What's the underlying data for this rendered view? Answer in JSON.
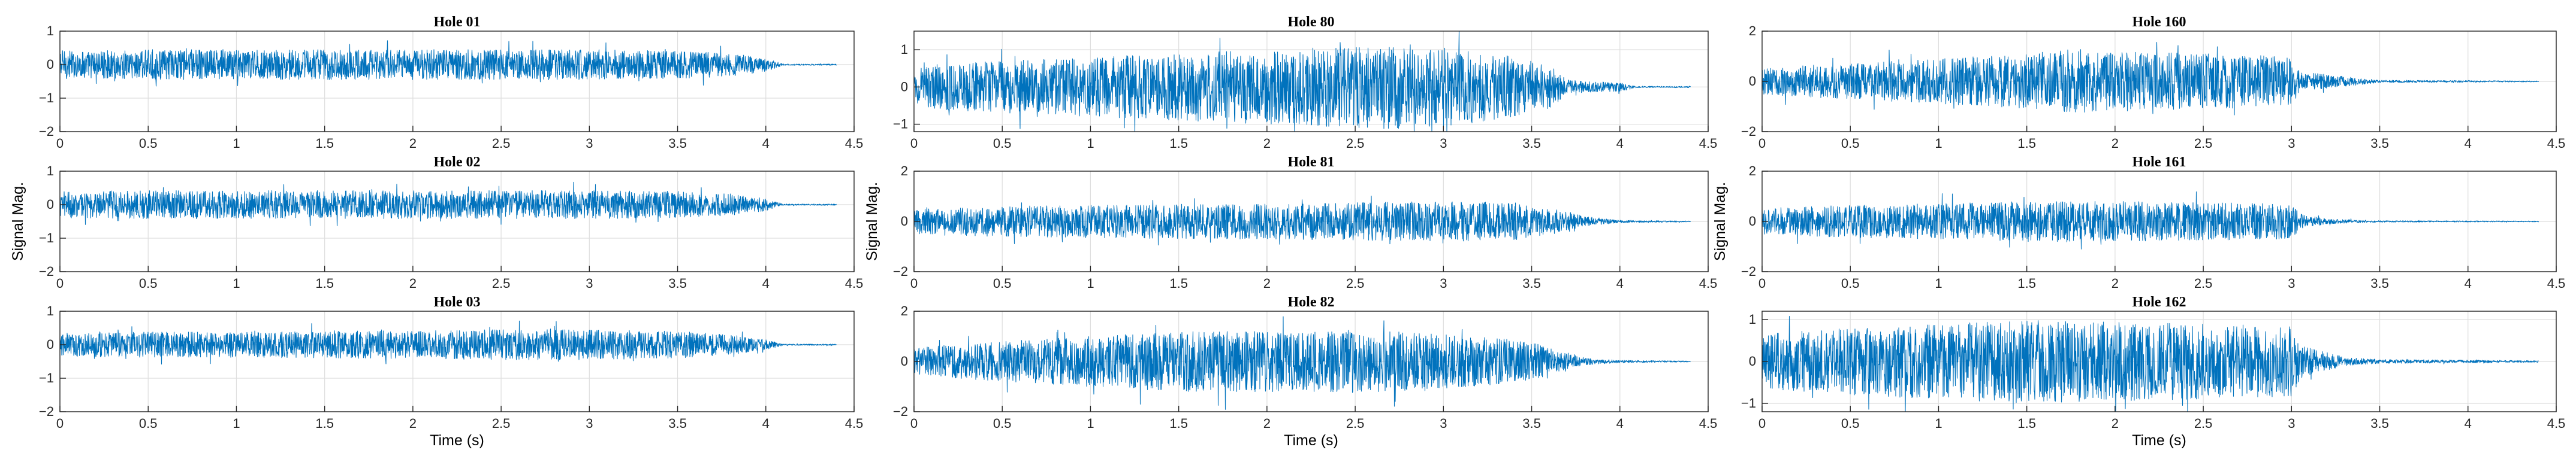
{
  "figure": {
    "signal_color": "#0072BD",
    "axis_color": "#262626",
    "grid_color": "#dedede",
    "ylabel": "Signal Mag.",
    "xlabel": "Time (s)"
  },
  "chart_data": [
    {
      "type": "line",
      "title": "Hole 01",
      "xlim": [
        0,
        4.5
      ],
      "ylim": [
        -2,
        1
      ],
      "yticks": [
        -2,
        -1,
        0,
        1
      ],
      "xticks": [
        0,
        0.5,
        1,
        1.5,
        2,
        2.5,
        3,
        3.5,
        4,
        4.5
      ],
      "xlabel": "",
      "ylabel": "",
      "grid": true,
      "series": [
        {
          "envelope": {
            "t": [
              0,
              0.1,
              0.5,
              1,
              1.5,
              2,
              2.5,
              3,
              3.5,
              3.8,
              4.0,
              4.1,
              4.4
            ],
            "amp": [
              0.45,
              0.4,
              0.45,
              0.45,
              0.45,
              0.45,
              0.45,
              0.45,
              0.42,
              0.35,
              0.2,
              0.02,
              0.02
            ]
          }
        }
      ]
    },
    {
      "type": "line",
      "title": "Hole 80",
      "xlim": [
        0,
        4.5
      ],
      "ylim": [
        -1.2,
        1.5
      ],
      "yticks": [
        -1,
        0,
        1
      ],
      "xticks": [
        0,
        0.5,
        1,
        1.5,
        2,
        2.5,
        3,
        3.5,
        4,
        4.5
      ],
      "xlabel": "",
      "ylabel": "",
      "grid": true,
      "series": [
        {
          "envelope": {
            "t": [
              0,
              0.1,
              0.5,
              1,
              1.5,
              2,
              2.5,
              2.8,
              3,
              3.3,
              3.6,
              3.7,
              3.8,
              4.0,
              4.1,
              4.4
            ],
            "amp": [
              0.5,
              0.6,
              0.7,
              0.8,
              0.9,
              1.0,
              1.1,
              1.15,
              1.05,
              0.9,
              0.6,
              0.2,
              0.15,
              0.12,
              0.02,
              0.02
            ]
          }
        }
      ]
    },
    {
      "type": "line",
      "title": "Hole 160",
      "xlim": [
        0,
        4.5
      ],
      "ylim": [
        -2,
        2
      ],
      "yticks": [
        -2,
        0,
        2
      ],
      "xticks": [
        0,
        0.5,
        1,
        1.5,
        2,
        2.5,
        3,
        3.5,
        4,
        4.5
      ],
      "xlabel": "",
      "ylabel": "",
      "grid": true,
      "series": [
        {
          "envelope": {
            "t": [
              0,
              0.1,
              0.5,
              1,
              1.5,
              1.8,
              2,
              2.5,
              3,
              3.05,
              3.3,
              3.5,
              4.4
            ],
            "amp": [
              0.5,
              0.6,
              0.7,
              0.9,
              1.1,
              1.3,
              1.2,
              1.1,
              1.0,
              0.4,
              0.2,
              0.05,
              0.02
            ]
          }
        }
      ]
    },
    {
      "type": "line",
      "title": "Hole 02",
      "xlim": [
        0,
        4.5
      ],
      "ylim": [
        -2,
        1
      ],
      "yticks": [
        -2,
        -1,
        0,
        1
      ],
      "xticks": [
        0,
        0.5,
        1,
        1.5,
        2,
        2.5,
        3,
        3.5,
        4,
        4.5
      ],
      "xlabel": "",
      "ylabel": "Signal Mag.",
      "grid": true,
      "series": [
        {
          "envelope": {
            "t": [
              0,
              0.1,
              0.5,
              1,
              1.5,
              2,
              2.5,
              3,
              3.5,
              3.8,
              4.0,
              4.1,
              4.4
            ],
            "amp": [
              0.4,
              0.4,
              0.42,
              0.42,
              0.42,
              0.42,
              0.42,
              0.42,
              0.4,
              0.32,
              0.18,
              0.02,
              0.02
            ]
          }
        }
      ]
    },
    {
      "type": "line",
      "title": "Hole 81",
      "xlim": [
        0,
        4.5
      ],
      "ylim": [
        -2,
        2
      ],
      "yticks": [
        -2,
        0,
        2
      ],
      "xticks": [
        0,
        0.5,
        1,
        1.5,
        2,
        2.5,
        3,
        3.5,
        4,
        4.5
      ],
      "xlabel": "",
      "ylabel": "Signal Mag.",
      "grid": true,
      "series": [
        {
          "envelope": {
            "t": [
              0,
              0.1,
              0.5,
              1,
              1.5,
              2,
              2.5,
              3,
              3.4,
              3.7,
              3.8,
              4.0,
              4.4
            ],
            "amp": [
              0.5,
              0.55,
              0.6,
              0.65,
              0.7,
              0.7,
              0.75,
              0.8,
              0.75,
              0.4,
              0.2,
              0.05,
              0.02
            ]
          }
        }
      ]
    },
    {
      "type": "line",
      "title": "Hole 161",
      "xlim": [
        0,
        4.5
      ],
      "ylim": [
        -2,
        2
      ],
      "yticks": [
        -2,
        0,
        2
      ],
      "xticks": [
        0,
        0.5,
        1,
        1.5,
        2,
        2.5,
        3,
        3.5,
        4,
        4.5
      ],
      "xlabel": "",
      "ylabel": "Signal Mag.",
      "grid": true,
      "series": [
        {
          "envelope": {
            "t": [
              0,
              0.1,
              0.5,
              1,
              1.5,
              2,
              2.5,
              3,
              3.05,
              3.2,
              3.5,
              4.4
            ],
            "amp": [
              0.5,
              0.55,
              0.65,
              0.7,
              0.8,
              0.8,
              0.75,
              0.7,
              0.3,
              0.1,
              0.03,
              0.02
            ]
          }
        }
      ]
    },
    {
      "type": "line",
      "title": "Hole 03",
      "xlim": [
        0,
        4.5
      ],
      "ylim": [
        -2,
        1
      ],
      "yticks": [
        -2,
        -1,
        0,
        1
      ],
      "xticks": [
        0,
        0.5,
        1,
        1.5,
        2,
        2.5,
        3,
        3.5,
        4,
        4.5
      ],
      "xlabel": "Time (s)",
      "ylabel": "",
      "grid": true,
      "series": [
        {
          "envelope": {
            "t": [
              0,
              0.1,
              0.5,
              1,
              1.5,
              2,
              2.5,
              3,
              3.5,
              3.8,
              4.0,
              4.1,
              4.4
            ],
            "amp": [
              0.35,
              0.35,
              0.38,
              0.38,
              0.4,
              0.42,
              0.45,
              0.45,
              0.4,
              0.3,
              0.15,
              0.02,
              0.02
            ]
          }
        }
      ]
    },
    {
      "type": "line",
      "title": "Hole 82",
      "xlim": [
        0,
        4.5
      ],
      "ylim": [
        -2,
        2
      ],
      "yticks": [
        -2,
        0,
        2
      ],
      "xticks": [
        0,
        0.5,
        1,
        1.5,
        2,
        2.5,
        3,
        3.5,
        4,
        4.5
      ],
      "xlabel": "Time (s)",
      "ylabel": "",
      "grid": true,
      "series": [
        {
          "envelope": {
            "t": [
              0,
              0.1,
              0.5,
              1,
              1.5,
              2,
              2.5,
              3,
              3.5,
              3.7,
              3.8,
              4.0,
              4.4
            ],
            "amp": [
              0.5,
              0.6,
              0.8,
              1.0,
              1.2,
              1.2,
              1.25,
              1.1,
              0.8,
              0.3,
              0.15,
              0.05,
              0.02
            ]
          }
        }
      ]
    },
    {
      "type": "line",
      "title": "Hole 162",
      "xlim": [
        0,
        4.5
      ],
      "ylim": [
        -1.2,
        1.2
      ],
      "yticks": [
        -1,
        0,
        1
      ],
      "xticks": [
        0,
        0.5,
        1,
        1.5,
        2,
        2.5,
        3,
        3.5,
        4,
        4.5
      ],
      "xlabel": "Time (s)",
      "ylabel": "",
      "grid": true,
      "series": [
        {
          "envelope": {
            "t": [
              0,
              0.1,
              0.5,
              1,
              1.5,
              2,
              2.5,
              3,
              3.05,
              3.3,
              3.5,
              4.4
            ],
            "amp": [
              0.6,
              0.7,
              0.8,
              0.9,
              1.0,
              0.95,
              0.9,
              0.85,
              0.4,
              0.1,
              0.05,
              0.02
            ]
          }
        }
      ]
    }
  ]
}
